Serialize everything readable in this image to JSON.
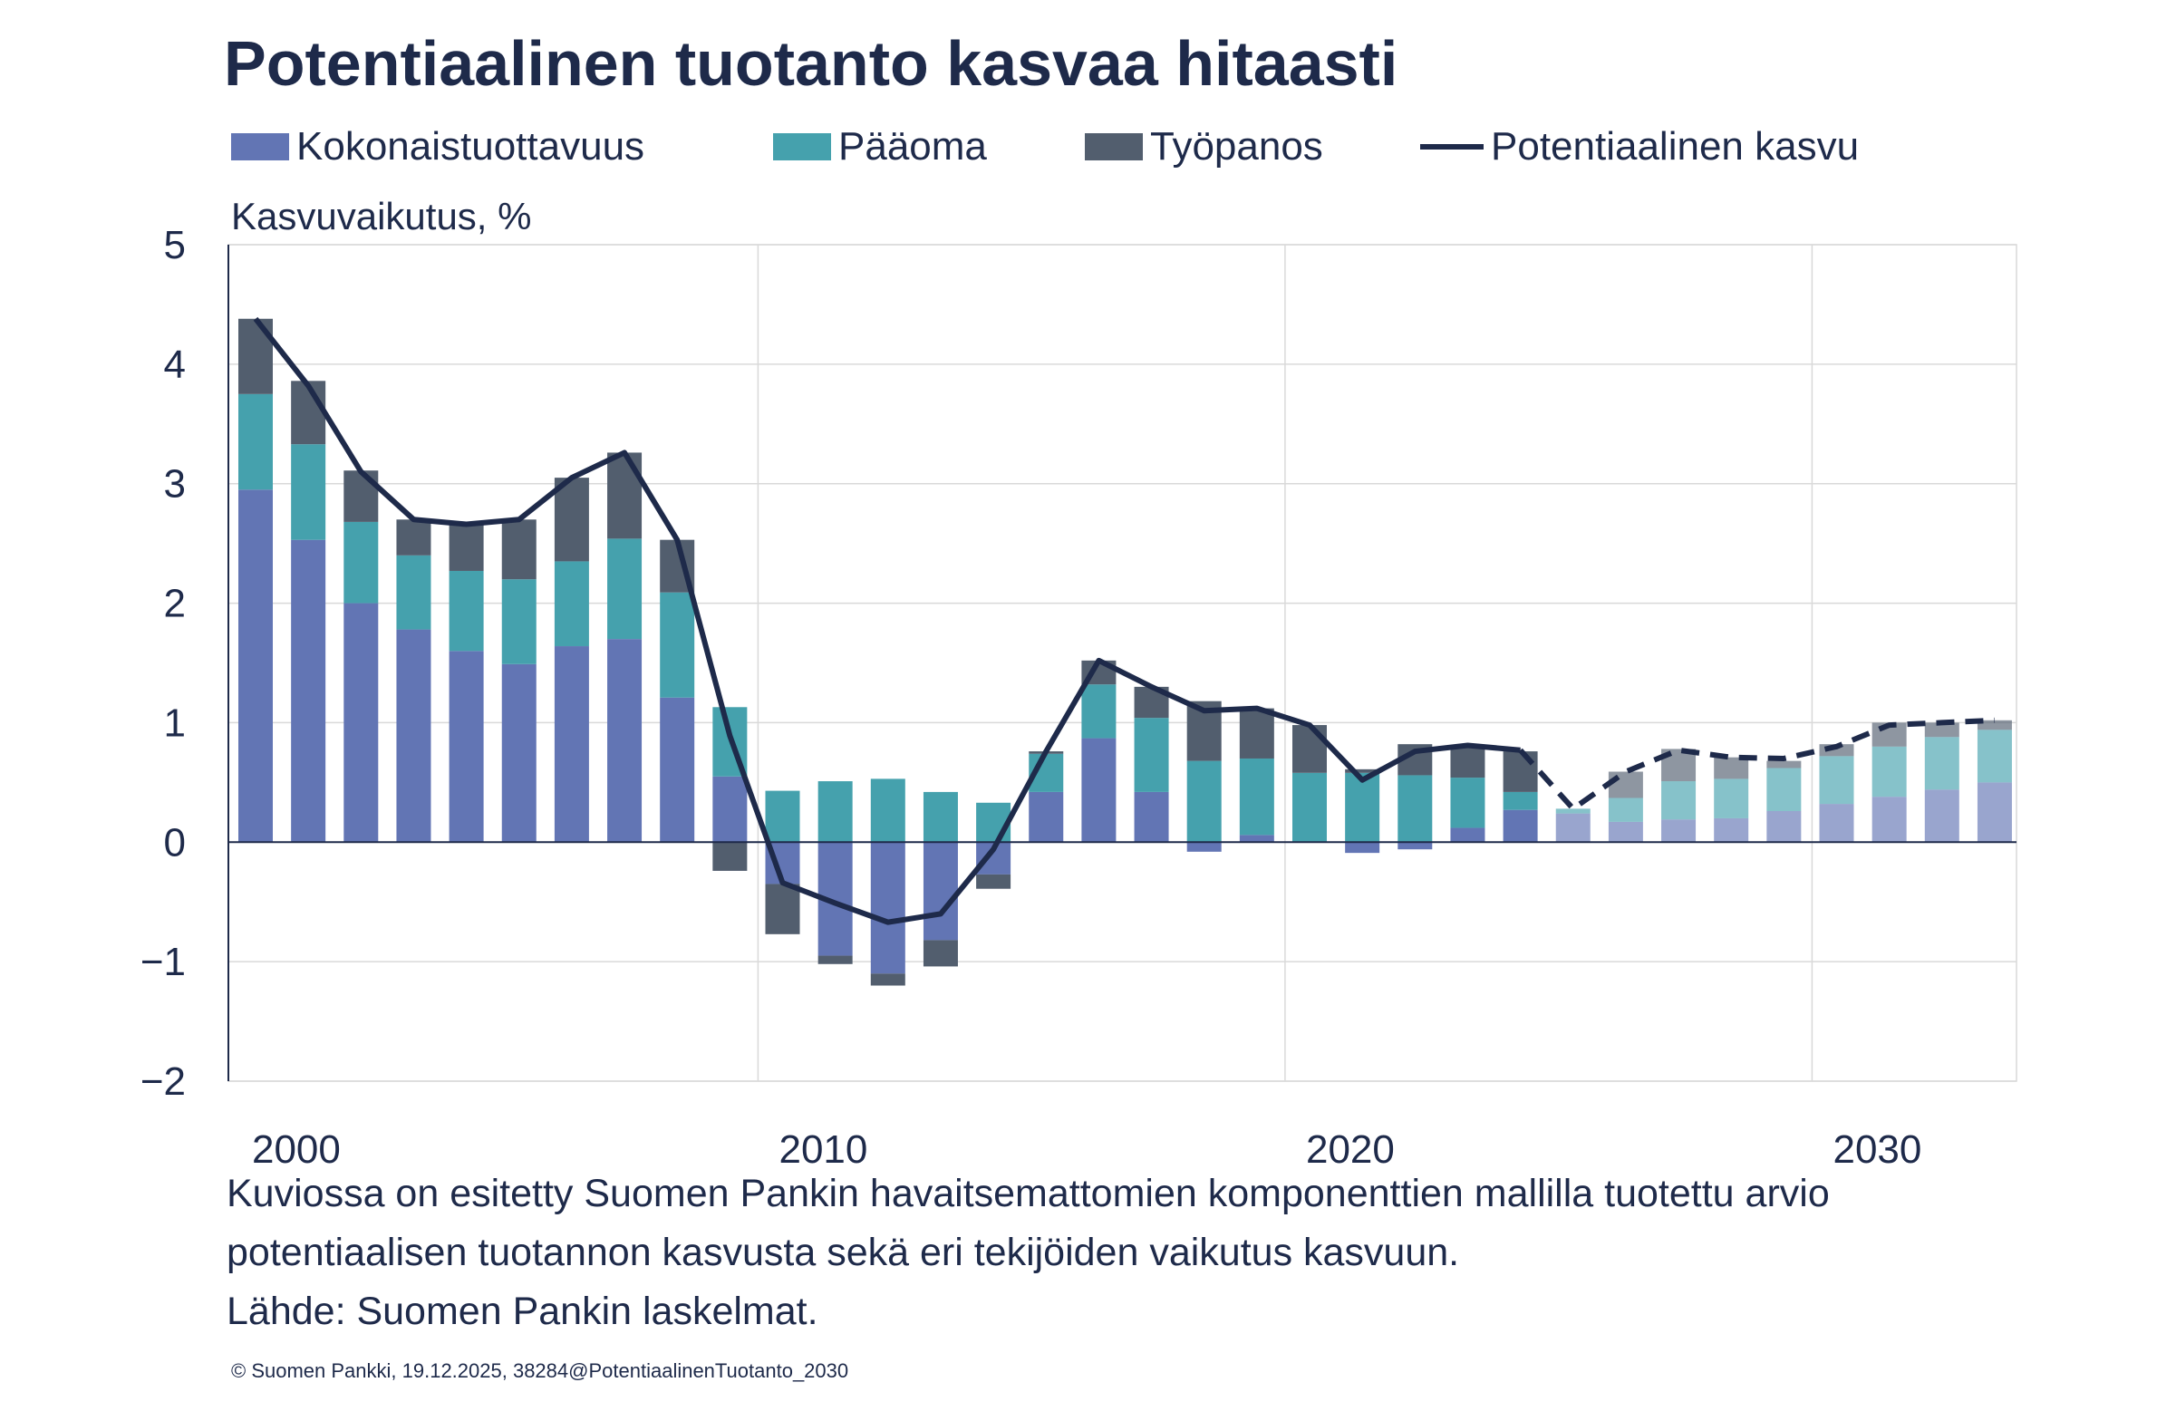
{
  "title": "Potentiaalinen tuotanto kasvaa hitaasti",
  "footnote": {
    "line1": "Kuviossa on esitetty Suomen Pankin havaitsemattomien komponenttien mallilla tuotettu arvio",
    "line2": "potentiaalisen tuotannon kasvusta sekä eri tekijöiden vaikutus kasvuun.",
    "source": "Lähde: Suomen Pankin laskelmat."
  },
  "copyright": "© Suomen Pankki, 19.12.2025, 38284@PotentiaalinenTuotanto_2030",
  "colors": {
    "tfp": "#6275b4",
    "capital": "#45a1ad",
    "labour": "#525e6e",
    "line": "#1e2a4a",
    "grid": "#d9d9d9",
    "text": "#1e2a4a"
  },
  "chart_data": {
    "type": "bar",
    "stacked": true,
    "title": "Potentiaalinen tuotanto kasvaa hitaasti",
    "ylabel": "Kasvuvaikutus, %",
    "xlabel": "",
    "ylim": [
      -2,
      5
    ],
    "yticks": [
      "5",
      "4",
      "3",
      "2",
      "1",
      "0",
      "−1",
      "−2"
    ],
    "ytick_values": [
      5,
      4,
      3,
      2,
      1,
      0,
      -1,
      -2
    ],
    "xticks": [
      "2000",
      "2010",
      "2020",
      "2030"
    ],
    "grid": true,
    "legend_position": "top",
    "forecast_from": 2025,
    "categories": [
      2000,
      2001,
      2002,
      2003,
      2004,
      2005,
      2006,
      2007,
      2008,
      2009,
      2010,
      2011,
      2012,
      2013,
      2014,
      2015,
      2016,
      2017,
      2018,
      2019,
      2020,
      2021,
      2022,
      2023,
      2024,
      2025,
      2026,
      2027,
      2028,
      2029,
      2030,
      2031,
      2032,
      2033
    ],
    "series": [
      {
        "name": "Kokonaistuottavuus",
        "kind": "bar",
        "values": [
          2.95,
          2.53,
          2.0,
          1.78,
          1.6,
          1.49,
          1.64,
          1.7,
          1.21,
          0.55,
          -0.35,
          -0.95,
          -1.1,
          -0.82,
          -0.27,
          0.42,
          0.87,
          0.42,
          -0.08,
          0.06,
          0.0,
          -0.09,
          -0.06,
          0.12,
          0.27,
          0.24,
          0.17,
          0.19,
          0.2,
          0.26,
          0.32,
          0.38,
          0.44,
          0.5
        ]
      },
      {
        "name": "Pääoma",
        "kind": "bar",
        "values": [
          0.8,
          0.8,
          0.68,
          0.62,
          0.67,
          0.71,
          0.71,
          0.84,
          0.88,
          0.58,
          0.43,
          0.51,
          0.53,
          0.42,
          0.33,
          0.32,
          0.45,
          0.62,
          0.68,
          0.64,
          0.58,
          0.58,
          0.56,
          0.42,
          0.15,
          0.04,
          0.2,
          0.32,
          0.33,
          0.36,
          0.4,
          0.42,
          0.44,
          0.44
        ]
      },
      {
        "name": "Työpanos",
        "kind": "bar",
        "values": [
          0.63,
          0.53,
          0.43,
          0.3,
          0.4,
          0.5,
          0.7,
          0.72,
          0.44,
          -0.24,
          -0.42,
          -0.07,
          -0.1,
          -0.22,
          -0.12,
          0.02,
          0.2,
          0.26,
          0.5,
          0.42,
          0.4,
          0.03,
          0.26,
          0.27,
          0.34,
          0.0,
          0.22,
          0.27,
          0.18,
          0.06,
          0.1,
          0.2,
          0.12,
          0.08
        ]
      },
      {
        "name": "Potentiaalinen kasvu",
        "kind": "line",
        "values": [
          4.38,
          3.82,
          3.1,
          2.7,
          2.66,
          2.7,
          3.05,
          3.26,
          2.53,
          0.89,
          -0.34,
          -0.51,
          -0.67,
          -0.6,
          -0.06,
          0.76,
          1.52,
          1.3,
          1.1,
          1.12,
          0.98,
          0.52,
          0.76,
          0.81,
          0.77,
          0.28,
          0.59,
          0.77,
          0.71,
          0.7,
          0.8,
          0.98,
          1.0,
          1.02
        ]
      }
    ]
  }
}
